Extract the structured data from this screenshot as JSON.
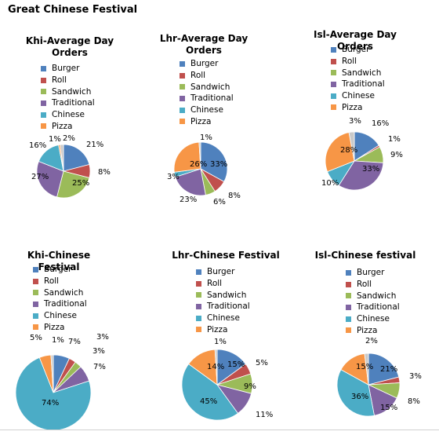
{
  "page_title": "Great Chinese Festival",
  "categories": [
    "Burger",
    "Roll",
    "Sandwich",
    "Traditional",
    "Chinese",
    "Pizza"
  ],
  "colors": [
    "#4f81bd",
    "#c0504d",
    "#9bbb59",
    "#8064a2",
    "#4bacc6",
    "#f79646"
  ],
  "chart_data": [
    {
      "type": "pie",
      "title": "Khi-Average Day Orders",
      "categories": [
        "Burger",
        "Roll",
        "Sandwich",
        "Traditional",
        "Chinese",
        "Pizza"
      ],
      "values": [
        21,
        8,
        25,
        27,
        16,
        1
      ],
      "labels": [
        "21%",
        "8%",
        "25%",
        "27%",
        "16%",
        "1%",
        "2%"
      ],
      "unlabeled_remainder": 2
    },
    {
      "type": "pie",
      "title": "Lhr-Average Day Orders",
      "categories": [
        "Burger",
        "Roll",
        "Sandwich",
        "Traditional",
        "Chinese",
        "Pizza"
      ],
      "values": [
        33,
        8,
        6,
        23,
        3,
        26
      ],
      "labels": [
        "33%",
        "8%",
        "6%",
        "23%",
        "3%",
        "26%",
        "1%"
      ],
      "unlabeled_remainder": 1
    },
    {
      "type": "pie",
      "title": "Isl-Average Day Orders",
      "categories": [
        "Burger",
        "Roll",
        "Sandwich",
        "Traditional",
        "Chinese",
        "Pizza"
      ],
      "values": [
        16,
        1,
        9,
        33,
        10,
        28
      ],
      "labels": [
        "16%",
        "1%",
        "9%",
        "33%",
        "10%",
        "28%",
        "3%"
      ],
      "unlabeled_remainder": 3
    },
    {
      "type": "pie",
      "title": "Khi-Chinese Festival",
      "categories": [
        "Burger",
        "Roll",
        "Sandwich",
        "Traditional",
        "Chinese",
        "Pizza"
      ],
      "values": [
        7,
        3,
        3,
        7,
        74,
        5
      ],
      "labels": [
        "7%",
        "3%",
        "3%",
        "7%",
        "74%",
        "5%",
        "1%"
      ],
      "unlabeled_remainder": 1
    },
    {
      "type": "pie",
      "title": "Lhr-Chinese Festival",
      "categories": [
        "Burger",
        "Roll",
        "Sandwich",
        "Traditional",
        "Chinese",
        "Pizza"
      ],
      "values": [
        15,
        5,
        9,
        11,
        45,
        14
      ],
      "labels": [
        "15%",
        "5%",
        "9%",
        "11%",
        "45%",
        "14%",
        "1%"
      ],
      "unlabeled_remainder": 1
    },
    {
      "type": "pie",
      "title": "Isl-Chinese festival",
      "categories": [
        "Burger",
        "Roll",
        "Sandwich",
        "Traditional",
        "Chinese",
        "Pizza"
      ],
      "values": [
        21,
        3,
        8,
        15,
        36,
        15
      ],
      "labels": [
        "21%",
        "3%",
        "8%",
        "15%",
        "36%",
        "15%",
        "2%"
      ],
      "unlabeled_remainder": 2
    }
  ]
}
